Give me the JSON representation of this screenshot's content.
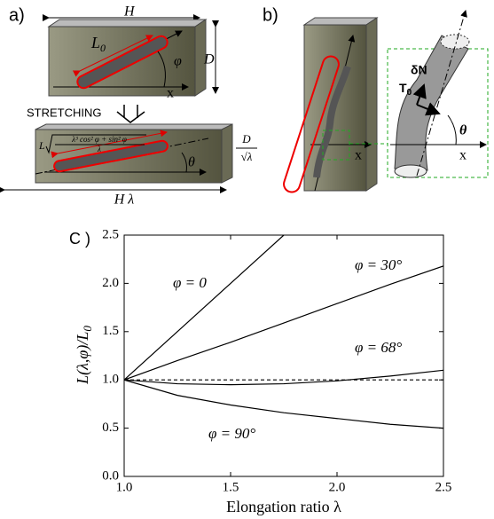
{
  "panel_a": {
    "label": "a)",
    "width": "H",
    "length": "L",
    "length_sub": "0",
    "angle": "φ",
    "depth": "D",
    "axis": "x",
    "action": "STRETCHING",
    "stretched_length": "L",
    "stretched_numerator": "λ³ cos² φ + sin² φ",
    "stretched_denominator": "λ",
    "angle2": "θ",
    "depth2_numerator": "D",
    "depth2_denominator": "√λ",
    "width2": "H λ"
  },
  "panel_b": {
    "label": "b)",
    "axis": "x",
    "normal": "δN",
    "tension": "T",
    "tension_sub": "0",
    "angle": "θ",
    "axis2": "x"
  },
  "chart_data": {
    "type": "line",
    "panel_label": "C )",
    "x_label": "Elongation ratio λ",
    "y_label": "L(λ,φ)/L",
    "y_label_sub": "0",
    "x": [
      1,
      1.25,
      1.5,
      1.75,
      2,
      2.25,
      2.5
    ],
    "series": [
      {
        "name": "φ = 0",
        "color": "#000000",
        "values": [
          1,
          1.5,
          2.0,
          2.5,
          null,
          null,
          null
        ]
      },
      {
        "name": "φ = 30°",
        "color": "#000000",
        "values": [
          1,
          1.2,
          1.39,
          1.59,
          1.79,
          1.99,
          2.18
        ]
      },
      {
        "name": "φ = 68°",
        "color": "#000000",
        "values": [
          1,
          0.96,
          0.95,
          0.96,
          0.99,
          1.04,
          1.1
        ]
      },
      {
        "name": "φ = 90°",
        "color": "#000000",
        "values": [
          1,
          0.84,
          0.74,
          0.66,
          0.6,
          0.54,
          0.5
        ]
      },
      {
        "color": "#000000",
        "dashed": true,
        "values": [
          1,
          1,
          1,
          1,
          1,
          1,
          1
        ]
      }
    ],
    "xlim": [
      1,
      2.5
    ],
    "ylim": [
      0,
      2.5
    ],
    "xticks": [
      {
        "value": 1,
        "label": "1.0"
      },
      {
        "value": 1.5,
        "label": "1.5"
      },
      {
        "value": 2,
        "label": "2.0"
      },
      {
        "value": 2.5,
        "label": "2.5"
      }
    ],
    "yticks": [
      {
        "value": 0,
        "label": "0.0"
      },
      {
        "value": 0.5,
        "label": "0.5"
      },
      {
        "value": 1,
        "label": "1.0"
      },
      {
        "value": 1.5,
        "label": "1.5"
      },
      {
        "value": 2,
        "label": "2.0"
      },
      {
        "value": 2.5,
        "label": "2.5"
      }
    ]
  }
}
